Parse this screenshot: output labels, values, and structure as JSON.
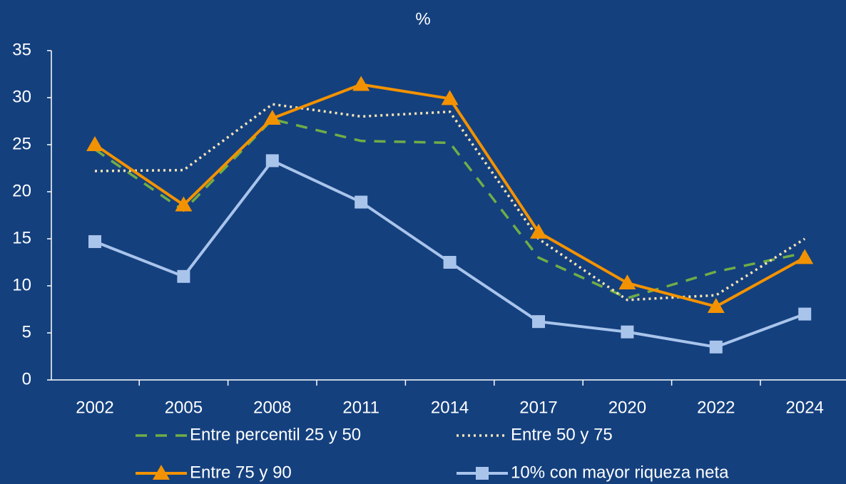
{
  "chart_data": {
    "type": "line",
    "title": "%",
    "categories": [
      "2002",
      "2005",
      "2008",
      "2011",
      "2014",
      "2017",
      "2020",
      "2022",
      "2024"
    ],
    "series": [
      {
        "name": "Entre percentil 25 y 50",
        "color": "#70ad47",
        "line_style": "dashed",
        "values": [
          24.5,
          18,
          27.7,
          25.4,
          25.2,
          13,
          8.7,
          11.5,
          13.5
        ]
      },
      {
        "name": "Entre  50 y 75",
        "color": "#f7e4b5",
        "line_style": "dotted",
        "values": [
          22.2,
          22.3,
          29.3,
          28,
          28.5,
          15,
          8.5,
          9,
          15
        ]
      },
      {
        "name": "Entre 75 y 90",
        "color": "#f39200",
        "line_style": "solid",
        "marker": "triangle",
        "values": [
          25,
          18.6,
          27.8,
          31.4,
          29.9,
          15.7,
          10.3,
          7.8,
          13
        ]
      },
      {
        "name": "10% con mayor riqueza neta",
        "color": "#a9c4eb",
        "line_style": "solid",
        "marker": "square",
        "values": [
          14.7,
          11,
          23.3,
          18.9,
          12.5,
          6.2,
          5.1,
          3.5,
          7
        ]
      }
    ],
    "ylim": [
      0,
      35
    ],
    "yticks": [
      0,
      5,
      10,
      15,
      20,
      25,
      30,
      35
    ]
  }
}
